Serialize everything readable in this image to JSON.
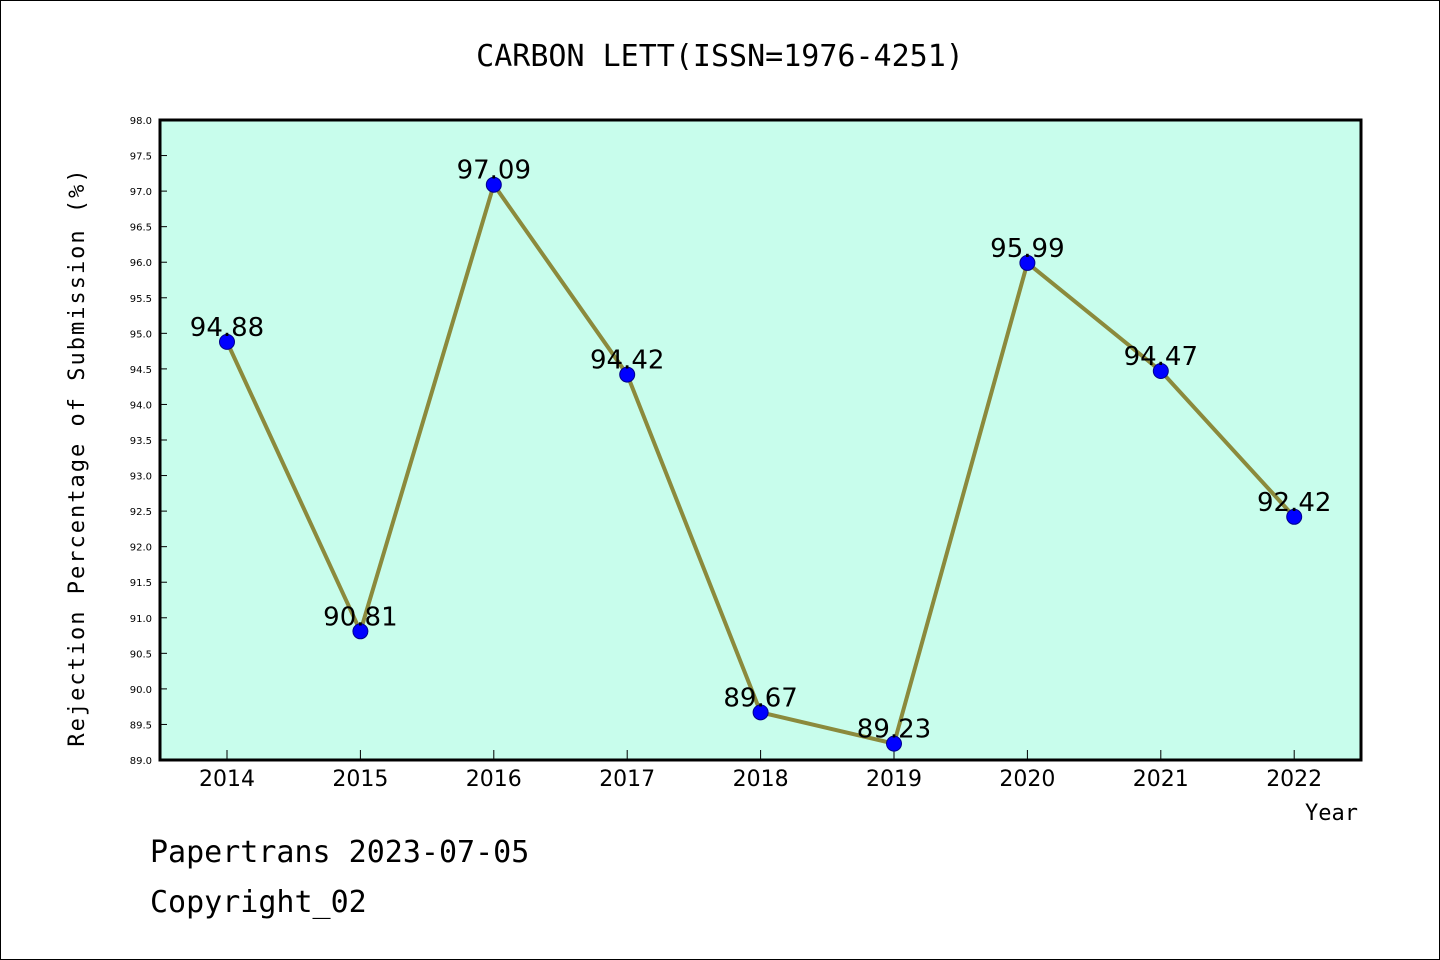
{
  "chart_data": {
    "type": "line",
    "title": "CARBON LETT(ISSN=1976-4251)",
    "xlabel": "Year",
    "ylabel": "Rejection Percentage of Submission (%)",
    "categories": [
      "2014",
      "2015",
      "2016",
      "2017",
      "2018",
      "2019",
      "2020",
      "2021",
      "2022"
    ],
    "values": [
      94.88,
      90.81,
      97.09,
      94.42,
      89.67,
      89.23,
      95.99,
      94.47,
      92.42
    ],
    "data_labels": [
      "94.88",
      "90.81",
      "97.09",
      "94.42",
      "89.67",
      "89.23",
      "95.99",
      "94.47",
      "92.42"
    ],
    "ylim": [
      89.0,
      98.0
    ],
    "yticks": [
      "89.0",
      "89.5",
      "90.0",
      "90.5",
      "91.0",
      "91.5",
      "92.0",
      "92.5",
      "93.0",
      "93.5",
      "94.0",
      "94.5",
      "95.0",
      "95.5",
      "96.0",
      "96.5",
      "97.0",
      "97.5",
      "98.0"
    ],
    "grid": false,
    "colors": {
      "plot_background": "#c8fdec",
      "line": "#8b8a3c",
      "marker": "#0000ff"
    }
  },
  "footer": {
    "line1": "Papertrans 2023-07-05",
    "line2": "Copyright_02"
  }
}
